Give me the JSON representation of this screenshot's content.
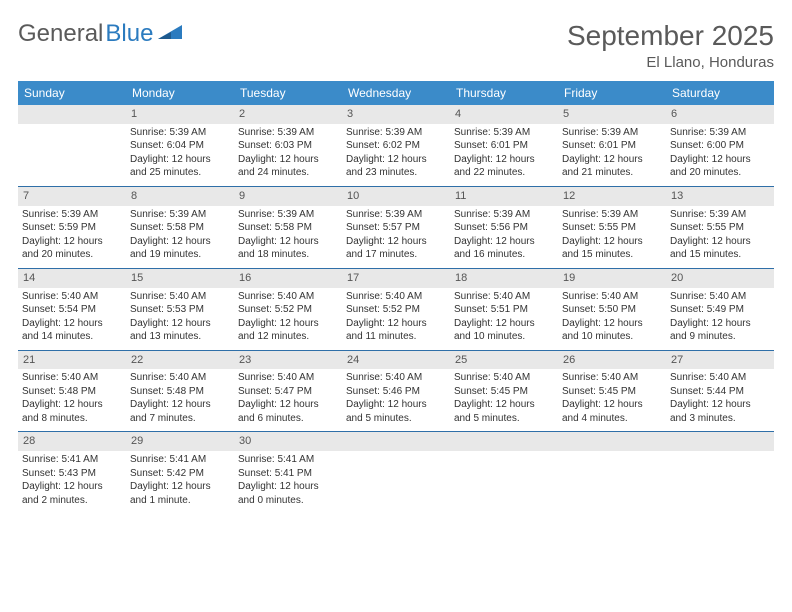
{
  "logo": {
    "text1": "General",
    "text2": "Blue"
  },
  "title": "September 2025",
  "location": "El Llano, Honduras",
  "colors": {
    "header_bg": "#3b8bc9",
    "header_fg": "#ffffff",
    "daynum_bg": "#e8e8e8",
    "rule": "#2f6fa8",
    "text": "#333333",
    "title_color": "#5a5a5a"
  },
  "day_headers": [
    "Sunday",
    "Monday",
    "Tuesday",
    "Wednesday",
    "Thursday",
    "Friday",
    "Saturday"
  ],
  "weeks": [
    [
      {
        "n": null
      },
      {
        "n": "1",
        "sr": "Sunrise: 5:39 AM",
        "ss": "Sunset: 6:04 PM",
        "dl": "Daylight: 12 hours and 25 minutes."
      },
      {
        "n": "2",
        "sr": "Sunrise: 5:39 AM",
        "ss": "Sunset: 6:03 PM",
        "dl": "Daylight: 12 hours and 24 minutes."
      },
      {
        "n": "3",
        "sr": "Sunrise: 5:39 AM",
        "ss": "Sunset: 6:02 PM",
        "dl": "Daylight: 12 hours and 23 minutes."
      },
      {
        "n": "4",
        "sr": "Sunrise: 5:39 AM",
        "ss": "Sunset: 6:01 PM",
        "dl": "Daylight: 12 hours and 22 minutes."
      },
      {
        "n": "5",
        "sr": "Sunrise: 5:39 AM",
        "ss": "Sunset: 6:01 PM",
        "dl": "Daylight: 12 hours and 21 minutes."
      },
      {
        "n": "6",
        "sr": "Sunrise: 5:39 AM",
        "ss": "Sunset: 6:00 PM",
        "dl": "Daylight: 12 hours and 20 minutes."
      }
    ],
    [
      {
        "n": "7",
        "sr": "Sunrise: 5:39 AM",
        "ss": "Sunset: 5:59 PM",
        "dl": "Daylight: 12 hours and 20 minutes."
      },
      {
        "n": "8",
        "sr": "Sunrise: 5:39 AM",
        "ss": "Sunset: 5:58 PM",
        "dl": "Daylight: 12 hours and 19 minutes."
      },
      {
        "n": "9",
        "sr": "Sunrise: 5:39 AM",
        "ss": "Sunset: 5:58 PM",
        "dl": "Daylight: 12 hours and 18 minutes."
      },
      {
        "n": "10",
        "sr": "Sunrise: 5:39 AM",
        "ss": "Sunset: 5:57 PM",
        "dl": "Daylight: 12 hours and 17 minutes."
      },
      {
        "n": "11",
        "sr": "Sunrise: 5:39 AM",
        "ss": "Sunset: 5:56 PM",
        "dl": "Daylight: 12 hours and 16 minutes."
      },
      {
        "n": "12",
        "sr": "Sunrise: 5:39 AM",
        "ss": "Sunset: 5:55 PM",
        "dl": "Daylight: 12 hours and 15 minutes."
      },
      {
        "n": "13",
        "sr": "Sunrise: 5:39 AM",
        "ss": "Sunset: 5:55 PM",
        "dl": "Daylight: 12 hours and 15 minutes."
      }
    ],
    [
      {
        "n": "14",
        "sr": "Sunrise: 5:40 AM",
        "ss": "Sunset: 5:54 PM",
        "dl": "Daylight: 12 hours and 14 minutes."
      },
      {
        "n": "15",
        "sr": "Sunrise: 5:40 AM",
        "ss": "Sunset: 5:53 PM",
        "dl": "Daylight: 12 hours and 13 minutes."
      },
      {
        "n": "16",
        "sr": "Sunrise: 5:40 AM",
        "ss": "Sunset: 5:52 PM",
        "dl": "Daylight: 12 hours and 12 minutes."
      },
      {
        "n": "17",
        "sr": "Sunrise: 5:40 AM",
        "ss": "Sunset: 5:52 PM",
        "dl": "Daylight: 12 hours and 11 minutes."
      },
      {
        "n": "18",
        "sr": "Sunrise: 5:40 AM",
        "ss": "Sunset: 5:51 PM",
        "dl": "Daylight: 12 hours and 10 minutes."
      },
      {
        "n": "19",
        "sr": "Sunrise: 5:40 AM",
        "ss": "Sunset: 5:50 PM",
        "dl": "Daylight: 12 hours and 10 minutes."
      },
      {
        "n": "20",
        "sr": "Sunrise: 5:40 AM",
        "ss": "Sunset: 5:49 PM",
        "dl": "Daylight: 12 hours and 9 minutes."
      }
    ],
    [
      {
        "n": "21",
        "sr": "Sunrise: 5:40 AM",
        "ss": "Sunset: 5:48 PM",
        "dl": "Daylight: 12 hours and 8 minutes."
      },
      {
        "n": "22",
        "sr": "Sunrise: 5:40 AM",
        "ss": "Sunset: 5:48 PM",
        "dl": "Daylight: 12 hours and 7 minutes."
      },
      {
        "n": "23",
        "sr": "Sunrise: 5:40 AM",
        "ss": "Sunset: 5:47 PM",
        "dl": "Daylight: 12 hours and 6 minutes."
      },
      {
        "n": "24",
        "sr": "Sunrise: 5:40 AM",
        "ss": "Sunset: 5:46 PM",
        "dl": "Daylight: 12 hours and 5 minutes."
      },
      {
        "n": "25",
        "sr": "Sunrise: 5:40 AM",
        "ss": "Sunset: 5:45 PM",
        "dl": "Daylight: 12 hours and 5 minutes."
      },
      {
        "n": "26",
        "sr": "Sunrise: 5:40 AM",
        "ss": "Sunset: 5:45 PM",
        "dl": "Daylight: 12 hours and 4 minutes."
      },
      {
        "n": "27",
        "sr": "Sunrise: 5:40 AM",
        "ss": "Sunset: 5:44 PM",
        "dl": "Daylight: 12 hours and 3 minutes."
      }
    ],
    [
      {
        "n": "28",
        "sr": "Sunrise: 5:41 AM",
        "ss": "Sunset: 5:43 PM",
        "dl": "Daylight: 12 hours and 2 minutes."
      },
      {
        "n": "29",
        "sr": "Sunrise: 5:41 AM",
        "ss": "Sunset: 5:42 PM",
        "dl": "Daylight: 12 hours and 1 minute."
      },
      {
        "n": "30",
        "sr": "Sunrise: 5:41 AM",
        "ss": "Sunset: 5:41 PM",
        "dl": "Daylight: 12 hours and 0 minutes."
      },
      {
        "n": null
      },
      {
        "n": null
      },
      {
        "n": null
      },
      {
        "n": null
      }
    ]
  ]
}
